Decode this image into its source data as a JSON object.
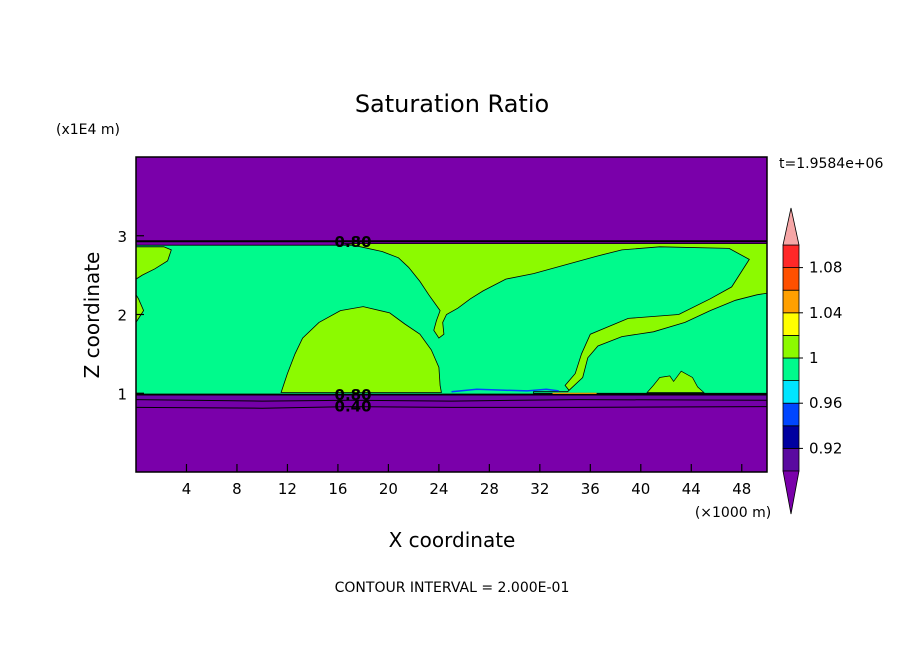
{
  "chart_data": {
    "type": "contour",
    "title": "Saturation Ratio",
    "xlabel": "X coordinate",
    "ylabel": "Z coordinate",
    "x_unit": "(×1000 m)",
    "y_unit": "(x1E4 m)",
    "time_label": "t=1.9584e+06",
    "footer": "CONTOUR INTERVAL = 2.000E-01",
    "xlim": [
      0,
      50
    ],
    "ylim": [
      0,
      4
    ],
    "x_ticks": [
      4,
      8,
      12,
      16,
      20,
      24,
      28,
      32,
      36,
      40,
      44,
      48
    ],
    "y_ticks": [
      1,
      2,
      3
    ],
    "contour_labels": [
      {
        "text": "0.80",
        "x": 17.2,
        "z": 2.92
      },
      {
        "text": "0.80",
        "x": 17.2,
        "z": 0.98
      },
      {
        "text": "0.40",
        "x": 17.2,
        "z": 0.83
      }
    ],
    "colorbar": {
      "labels": [
        "1.08",
        "1.04",
        "1",
        "0.96",
        "0.92"
      ],
      "levels": [
        0.9,
        0.92,
        0.94,
        0.96,
        0.98,
        1.0,
        1.02,
        1.04,
        1.06,
        1.08,
        1.1
      ],
      "colors": [
        "#5a0aa0",
        "#0000a0",
        "#0046ff",
        "#00e5ff",
        "#00fa8c",
        "#8cfa00",
        "#ffff00",
        "#ffa000",
        "#ff5000",
        "#ff2828"
      ],
      "under_color": "#7a00aa",
      "over_color": "#f6a6a6"
    },
    "regions": {
      "background": "#7a00aa",
      "cloud_layer": "#00fa8c",
      "supersaturated": "#8cfa00"
    }
  }
}
